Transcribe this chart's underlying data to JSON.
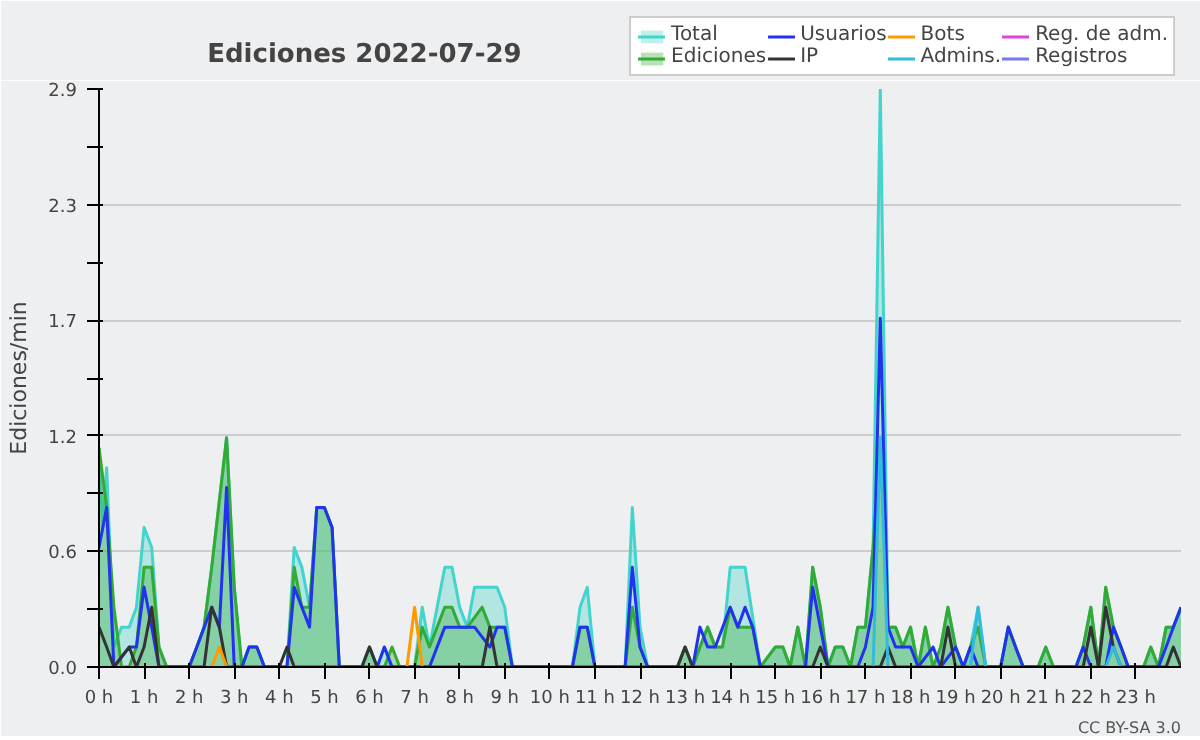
{
  "chart_data": {
    "type": "line",
    "title": "Ediciones  2022-07-29",
    "ylabel": "Ediciones/min",
    "annotations": [
      "CC BY-SA 3.0"
    ],
    "xlim": [
      0,
      24
    ],
    "xticks": [
      {
        "value": 0,
        "label": "0 h"
      },
      {
        "value": 1,
        "label": "1 h"
      },
      {
        "value": 2,
        "label": "2 h"
      },
      {
        "value": 3,
        "label": "3 h"
      },
      {
        "value": 4,
        "label": "4 h"
      },
      {
        "value": 5,
        "label": "5 h"
      },
      {
        "value": 6,
        "label": "6 h"
      },
      {
        "value": 7,
        "label": "7 h"
      },
      {
        "value": 8,
        "label": "8 h"
      },
      {
        "value": 9,
        "label": "9 h"
      },
      {
        "value": 10,
        "label": "10 h"
      },
      {
        "value": 11,
        "label": "11 h"
      },
      {
        "value": 12,
        "label": "12 h"
      },
      {
        "value": 13,
        "label": "13 h"
      },
      {
        "value": 14,
        "label": "14 h"
      },
      {
        "value": 15,
        "label": "15 h"
      },
      {
        "value": 16,
        "label": "16 h"
      },
      {
        "value": 17,
        "label": "17 h"
      },
      {
        "value": 18,
        "label": "18 h"
      },
      {
        "value": 19,
        "label": "19 h"
      },
      {
        "value": 20,
        "label": "20 h"
      },
      {
        "value": 21,
        "label": "21 h"
      },
      {
        "value": 22,
        "label": "22 h"
      },
      {
        "value": 23,
        "label": "23 h"
      }
    ],
    "ylim": [
      0,
      2.9
    ],
    "yticks": [
      {
        "value": 0,
        "label": "0.0"
      },
      {
        "value": 0.29,
        "label": null
      },
      {
        "value": 0.58,
        "label": "0.6"
      },
      {
        "value": 0.87,
        "label": null
      },
      {
        "value": 1.16,
        "label": "1.2"
      },
      {
        "value": 1.45,
        "label": null
      },
      {
        "value": 1.74,
        "label": "1.7"
      },
      {
        "value": 2.03,
        "label": null
      },
      {
        "value": 2.32,
        "label": "2.3"
      },
      {
        "value": 2.61,
        "label": null
      },
      {
        "value": 2.9,
        "label": "2.9"
      }
    ],
    "grid": "y",
    "legend": "top right",
    "line_style": "solid",
    "series": [
      {
        "name": "Total",
        "type": "area",
        "color": "#44d4cc",
        "x": [
          0,
          0.08,
          0.17,
          0.33,
          0.5,
          0.67,
          0.83,
          1.0,
          1.17,
          1.33,
          1.5,
          2.0,
          2.17,
          2.33,
          2.5,
          2.83,
          3.0,
          3.17,
          3.33,
          3.5,
          3.67,
          4.17,
          4.33,
          4.5,
          4.67,
          4.83,
          5.0,
          5.17,
          5.33,
          5.83,
          6.0,
          6.17,
          6.33,
          6.5,
          7.0,
          7.17,
          7.33,
          7.5,
          7.67,
          7.83,
          8.0,
          8.17,
          8.33,
          8.83,
          9.0,
          9.17,
          10.5,
          10.67,
          10.83,
          11.0,
          11.67,
          11.83,
          12.0,
          12.17,
          12.83,
          13.0,
          13.17,
          13.33,
          13.5,
          13.67,
          13.83,
          14.0,
          14.33,
          14.67,
          15.0,
          15.17,
          15.33,
          15.5,
          15.67,
          15.83,
          16.0,
          16.17,
          16.33,
          16.5,
          16.67,
          16.83,
          17.0,
          17.17,
          17.33,
          17.5,
          17.67,
          17.83,
          18.0,
          18.17,
          18.33,
          18.5,
          18.67,
          18.83,
          19.0,
          19.17,
          19.33,
          19.5,
          19.67,
          20.0,
          20.17,
          20.33,
          20.5,
          20.83,
          21.0,
          21.17,
          21.67,
          21.83,
          22.0,
          22.17,
          22.33,
          22.5,
          22.67,
          22.83,
          23.17,
          23.33,
          23.5,
          23.67,
          23.83,
          24.0
        ],
        "values": [
          1.1,
          0.7,
          1.0,
          0.1,
          0.2,
          0.2,
          0.3,
          0.7,
          0.6,
          0.1,
          0,
          0,
          0.1,
          0.2,
          0.5,
          1.15,
          0.4,
          0,
          0.1,
          0.1,
          0,
          0,
          0.6,
          0.5,
          0.3,
          0.8,
          0.8,
          0.7,
          0,
          0,
          0.1,
          0,
          0.1,
          0,
          0,
          0.3,
          0.1,
          0.3,
          0.5,
          0.5,
          0.3,
          0.2,
          0.4,
          0.4,
          0.3,
          0,
          0,
          0.3,
          0.4,
          0,
          0,
          0.8,
          0.2,
          0,
          0,
          0.1,
          0,
          0.1,
          0.2,
          0.1,
          0.1,
          0.5,
          0.5,
          0,
          0.1,
          0.1,
          0,
          0.2,
          0,
          0.5,
          0.3,
          0,
          0.1,
          0.1,
          0,
          0.2,
          0.2,
          0.6,
          2.9,
          0.2,
          0.2,
          0.1,
          0.2,
          0,
          0.2,
          0,
          0.1,
          0.3,
          0.1,
          0,
          0.1,
          0.3,
          0,
          0,
          0.2,
          0.1,
          0,
          0,
          0.1,
          0,
          0,
          0.1,
          0.3,
          0,
          0.4,
          0.2,
          0.1,
          0,
          0,
          0.1,
          0,
          0.2,
          0.2,
          0.3
        ]
      },
      {
        "name": "Ediciones",
        "type": "area",
        "color": "#33aa33",
        "x": [
          0,
          0.17,
          0.33,
          0.5,
          0.67,
          0.83,
          1.0,
          1.17,
          1.33,
          1.5,
          2.0,
          2.17,
          2.33,
          2.5,
          2.83,
          3.0,
          3.17,
          3.33,
          3.5,
          3.67,
          4.17,
          4.33,
          4.5,
          4.67,
          4.83,
          5.0,
          5.17,
          5.33,
          5.83,
          6.0,
          6.17,
          6.33,
          6.5,
          6.67,
          7.0,
          7.17,
          7.33,
          7.5,
          7.67,
          7.83,
          8.0,
          8.17,
          8.5,
          8.67,
          8.83,
          9.0,
          9.17,
          10.5,
          10.67,
          10.83,
          11.0,
          11.67,
          11.83,
          12.0,
          12.17,
          12.83,
          13.0,
          13.17,
          13.33,
          13.5,
          13.67,
          13.83,
          14.0,
          14.17,
          14.5,
          14.67,
          15.0,
          15.17,
          15.33,
          15.5,
          15.67,
          15.83,
          16.0,
          16.17,
          16.33,
          16.5,
          16.67,
          16.83,
          17.0,
          17.17,
          17.33,
          17.5,
          17.67,
          17.83,
          18.0,
          18.17,
          18.33,
          18.5,
          18.67,
          18.83,
          19.0,
          19.17,
          19.33,
          19.5,
          19.67,
          20.0,
          20.17,
          20.33,
          20.5,
          20.83,
          21.0,
          21.17,
          21.67,
          21.83,
          22.0,
          22.17,
          22.33,
          22.5,
          22.67,
          22.83,
          23.17,
          23.33,
          23.5,
          23.67,
          23.83,
          24.0
        ],
        "values": [
          1.1,
          0.8,
          0.3,
          0,
          0,
          0.1,
          0.5,
          0.5,
          0.1,
          0,
          0,
          0.1,
          0.2,
          0.5,
          1.15,
          0.4,
          0,
          0.1,
          0.1,
          0,
          0,
          0.5,
          0.3,
          0.3,
          0.8,
          0.8,
          0.7,
          0,
          0,
          0.1,
          0,
          0,
          0.1,
          0,
          0,
          0.2,
          0.1,
          0.2,
          0.3,
          0.3,
          0.2,
          0.2,
          0.3,
          0.2,
          0.2,
          0.2,
          0,
          0,
          0.2,
          0.2,
          0,
          0,
          0.3,
          0.1,
          0,
          0,
          0.1,
          0,
          0.1,
          0.2,
          0.1,
          0.1,
          0.3,
          0.2,
          0.2,
          0,
          0.1,
          0.1,
          0,
          0.2,
          0,
          0.5,
          0.3,
          0,
          0.1,
          0.1,
          0,
          0.2,
          0.2,
          0.6,
          1.15,
          0.2,
          0.2,
          0.1,
          0.2,
          0,
          0.2,
          0,
          0.1,
          0.3,
          0.1,
          0,
          0.1,
          0.2,
          0,
          0,
          0.2,
          0.1,
          0,
          0,
          0.1,
          0,
          0,
          0.1,
          0.3,
          0,
          0.4,
          0.2,
          0.1,
          0,
          0,
          0.1,
          0,
          0.2,
          0.2,
          0.3
        ]
      },
      {
        "name": "Usuarios",
        "color": "#2233ee",
        "x": [
          0,
          0.17,
          0.33,
          0.67,
          0.83,
          1.0,
          1.17,
          1.33,
          2.0,
          2.17,
          2.5,
          2.67,
          2.83,
          3.0,
          3.17,
          3.33,
          3.5,
          3.67,
          4.17,
          4.33,
          4.67,
          4.83,
          5.0,
          5.17,
          5.33,
          6.17,
          6.33,
          6.5,
          7.33,
          7.67,
          8.17,
          8.33,
          8.67,
          8.83,
          9.0,
          9.17,
          10.5,
          10.67,
          10.83,
          11.0,
          11.67,
          11.83,
          12.0,
          12.17,
          13.17,
          13.33,
          13.5,
          13.67,
          14.0,
          14.17,
          14.33,
          14.5,
          14.67,
          15.67,
          15.83,
          16.0,
          16.17,
          16.83,
          17.0,
          17.17,
          17.33,
          17.5,
          17.67,
          18.0,
          18.17,
          18.5,
          18.67,
          19.0,
          19.17,
          19.33,
          19.5,
          20.0,
          20.17,
          20.33,
          20.5,
          21.67,
          21.83,
          22.0,
          22.33,
          22.5,
          22.67,
          22.83,
          23.5,
          23.67,
          23.83,
          24.0
        ],
        "values": [
          0.6,
          0.8,
          0,
          0.1,
          0.1,
          0.4,
          0.2,
          0,
          0,
          0.1,
          0.3,
          0.2,
          0.9,
          0,
          0,
          0.1,
          0.1,
          0,
          0,
          0.4,
          0.2,
          0.8,
          0.8,
          0.7,
          0,
          0,
          0.1,
          0,
          0,
          0.2,
          0.2,
          0.2,
          0.1,
          0.2,
          0.2,
          0,
          0,
          0.2,
          0.2,
          0,
          0,
          0.5,
          0.1,
          0,
          0,
          0.2,
          0.1,
          0.1,
          0.3,
          0.2,
          0.3,
          0.2,
          0,
          0,
          0.4,
          0.2,
          0,
          0,
          0.1,
          0.3,
          1.75,
          0.2,
          0.1,
          0.1,
          0,
          0.1,
          0,
          0.1,
          0,
          0.1,
          0,
          0,
          0.2,
          0.1,
          0,
          0,
          0.1,
          0,
          0,
          0.2,
          0.1,
          0,
          0,
          0.1,
          0.2,
          0.3
        ]
      },
      {
        "name": "IP",
        "color": "#333333",
        "x": [
          0,
          0.17,
          0.33,
          0.67,
          0.83,
          1.0,
          1.17,
          1.33,
          2.33,
          2.5,
          2.67,
          2.83,
          4.0,
          4.17,
          4.33,
          5.83,
          6.0,
          6.17,
          8.5,
          8.67,
          8.83,
          12.83,
          13.0,
          13.17,
          15.83,
          16.0,
          16.17,
          17.33,
          17.5,
          17.67,
          18.67,
          18.83,
          19.0,
          21.83,
          22.0,
          22.17,
          22.33,
          22.5,
          22.67,
          23.67,
          23.83,
          24.0
        ],
        "values": [
          0.2,
          0.1,
          0,
          0.1,
          0,
          0.1,
          0.3,
          0,
          0,
          0.3,
          0.2,
          0,
          0,
          0.1,
          0,
          0,
          0.1,
          0,
          0,
          0.2,
          0,
          0,
          0.1,
          0,
          0,
          0.1,
          0,
          0,
          0.1,
          0,
          0,
          0.2,
          0,
          0,
          0.2,
          0,
          0.3,
          0.1,
          0,
          0,
          0.1,
          0
        ]
      },
      {
        "name": "Bots",
        "color": "#ff9900",
        "x": [
          2.5,
          2.67,
          2.83,
          5,
          6.83,
          7.0,
          7.17
        ],
        "values": [
          0,
          0.1,
          0,
          null,
          0,
          0.3,
          0
        ]
      },
      {
        "name": "Admins.",
        "color": "#33bbdd",
        "x": [
          17.17,
          17.33,
          17.5,
          18,
          19.33,
          19.5,
          19.67,
          20,
          22.33,
          22.5,
          22.67
        ],
        "values": [
          0,
          1.15,
          0,
          null,
          0,
          0.3,
          0,
          null,
          0,
          0.1,
          0
        ]
      },
      {
        "name": "Reg. de adm.",
        "color": "#dd44dd"
      },
      {
        "name": "Registros",
        "color": "#7777ee"
      }
    ]
  }
}
